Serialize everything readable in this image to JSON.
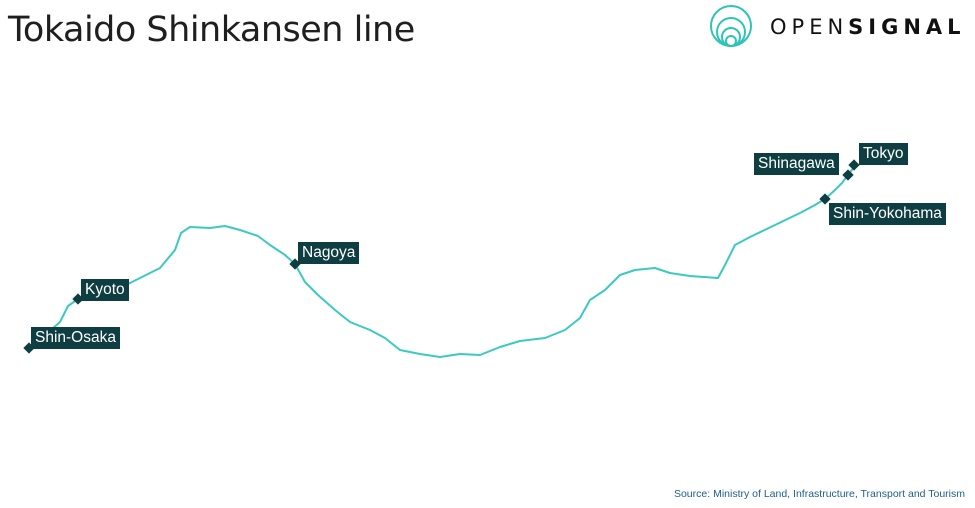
{
  "title": "Tokaido Shinkansen line",
  "logo": {
    "text_light": "OPEN",
    "text_bold": "SIGNAL",
    "color": "#2ec4b6"
  },
  "route_color": "#3cc9c0",
  "label_color": "#0f3e42",
  "stations": [
    {
      "name": "Shin-Osaka"
    },
    {
      "name": "Kyoto"
    },
    {
      "name": "Nagoya"
    },
    {
      "name": "Shin-Yokohama"
    },
    {
      "name": "Shinagawa"
    },
    {
      "name": "Tokyo"
    }
  ],
  "source": "Source: Ministry of Land, Infrastructure, Transport and Tourism"
}
